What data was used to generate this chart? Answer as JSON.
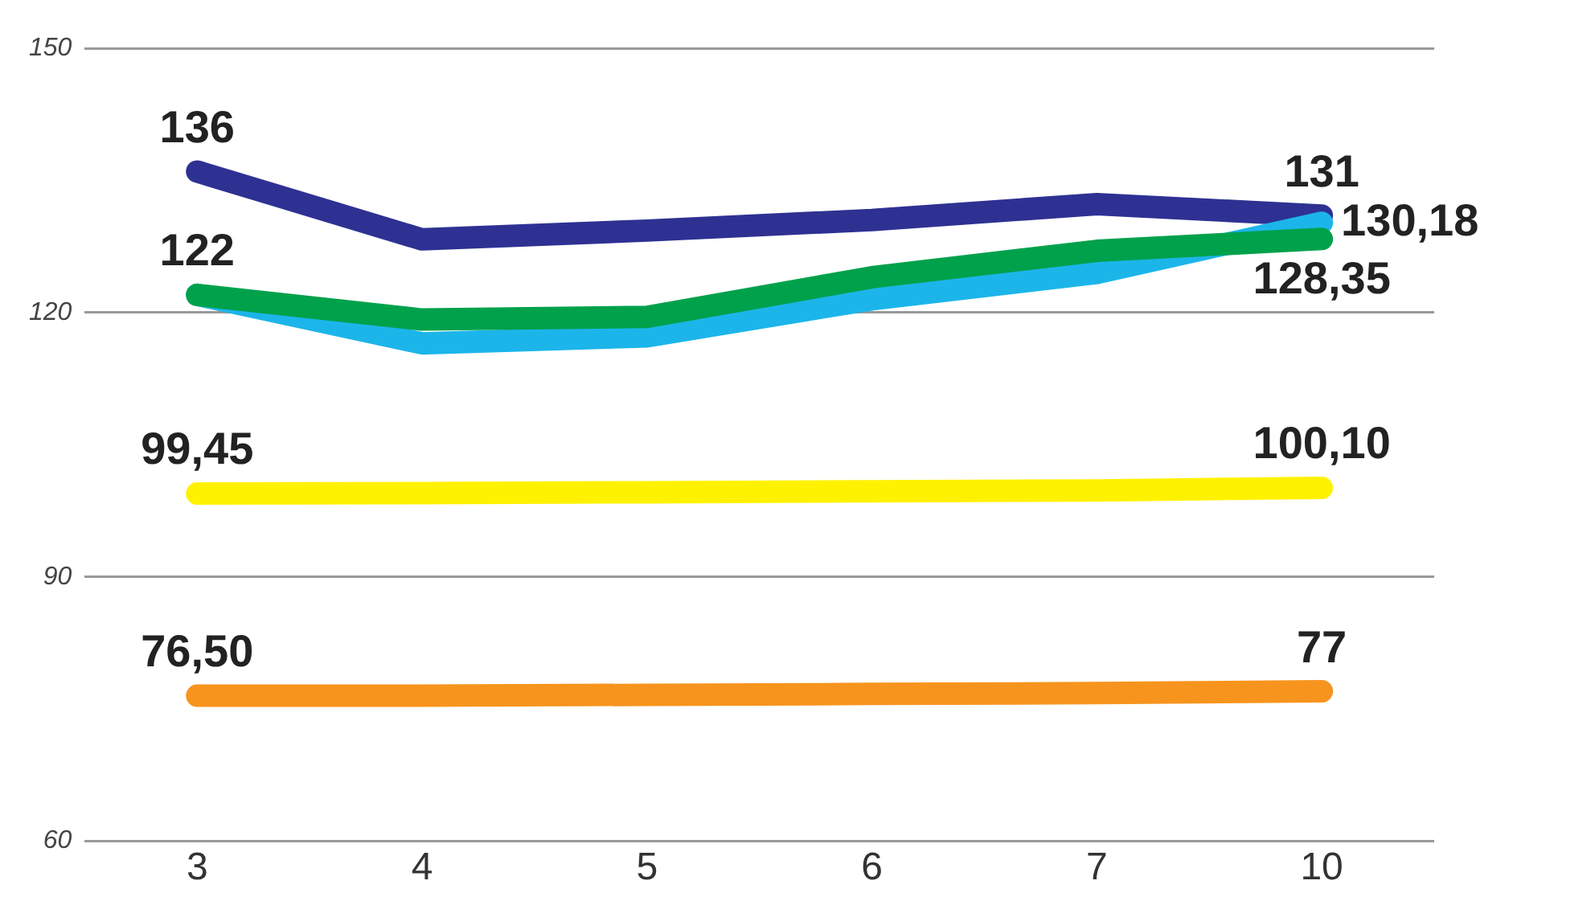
{
  "chart_data": {
    "type": "line",
    "categories": [
      "3",
      "4",
      "5",
      "6",
      "7",
      "10"
    ],
    "ylim": [
      60,
      150
    ],
    "yticks": [
      60,
      90,
      120,
      150
    ],
    "grid": "y",
    "legend": false,
    "marker": "none",
    "line_style": "solid",
    "series": [
      {
        "color": "#f7941d",
        "values": [
          76.5,
          76.5,
          76.6,
          76.7,
          76.8,
          77
        ],
        "value_labels": [
          "76,50",
          null,
          null,
          null,
          null,
          "77"
        ]
      },
      {
        "color": "#fff200",
        "values": [
          99.45,
          99.5,
          99.6,
          99.7,
          99.8,
          100.1
        ],
        "value_labels": [
          "99,45",
          null,
          null,
          null,
          null,
          "100,10"
        ]
      },
      {
        "color": "#00a14b",
        "values": [
          122,
          119.2,
          119.5,
          124,
          127,
          128.35
        ],
        "value_labels": [
          null,
          null,
          null,
          null,
          null,
          "128,35"
        ]
      },
      {
        "color": "#1cb5ea",
        "values": [
          122,
          116.5,
          117.3,
          121.5,
          124.5,
          130.18
        ],
        "value_labels": [
          "122",
          null,
          null,
          null,
          null,
          "130,18"
        ]
      },
      {
        "color": "#2e3192",
        "values": [
          136,
          128.3,
          129.3,
          130.5,
          132.3,
          131
        ],
        "value_labels": [
          "136",
          null,
          null,
          null,
          null,
          "131"
        ]
      }
    ]
  }
}
